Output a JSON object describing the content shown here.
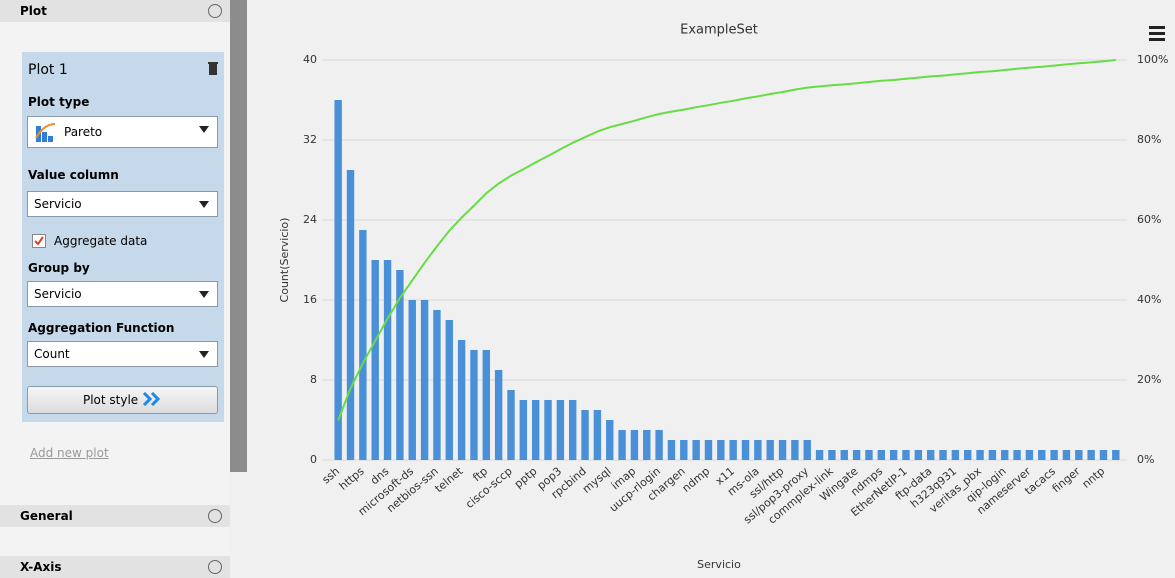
{
  "sidebar": {
    "header": "Plot",
    "plot_name": "Plot 1",
    "plot_type_label": "Plot type",
    "plot_type": "Pareto",
    "value_column_label": "Value column",
    "value_column": "Servicio",
    "aggregate_label": "Aggregate data",
    "aggregate_checked": true,
    "group_by_label": "Group by",
    "group_by": "Servicio",
    "aggregation_label": "Aggregation Function",
    "aggregation": "Count",
    "plot_style": "Plot style",
    "add_plot": "Add new plot",
    "sections": [
      "General",
      "X-Axis"
    ]
  },
  "chart_data": {
    "type": "pareto",
    "title": "ExampleSet",
    "x_label": "Servicio",
    "y_label": "Count(Servicio)",
    "categories": [
      "ssh",
      null,
      "https",
      null,
      "dns",
      null,
      "microsoft-ds",
      null,
      "netbios-ssn",
      null,
      "telnet",
      null,
      "ftp",
      null,
      "cisco-sccp",
      null,
      "pptp",
      null,
      "pop3",
      null,
      "rpcbind",
      null,
      "mysql",
      null,
      "imap",
      null,
      "uucp-rlogin",
      null,
      "chargen",
      null,
      "ndmp",
      null,
      "x11",
      null,
      "ms-ola",
      null,
      "ssl/http",
      null,
      "ssl/pop3-proxy",
      null,
      "commplex-link",
      null,
      "Wingate",
      null,
      "ndmps",
      null,
      "EtherNetIP-1",
      null,
      "ftp-data",
      null,
      "h323q931",
      null,
      "veritas_pbx",
      null,
      "qip-login",
      null,
      "nameserver",
      null,
      "tacacs",
      null,
      "finger",
      null,
      "nntp",
      null
    ],
    "values": [
      36,
      29,
      23,
      20,
      20,
      19,
      16,
      16,
      15,
      14,
      12,
      11,
      11,
      9,
      7,
      6,
      6,
      6,
      6,
      6,
      5,
      5,
      4,
      3,
      3,
      3,
      3,
      2,
      2,
      2,
      2,
      2,
      2,
      2,
      2,
      2,
      2,
      2,
      2,
      1,
      1,
      1,
      1,
      1,
      1,
      1,
      1,
      1,
      1,
      1,
      1,
      1,
      1,
      1,
      1,
      1,
      1,
      1,
      1,
      1,
      1,
      1,
      1,
      1
    ],
    "color": "#4a90d9",
    "cumulative": {
      "axis": "y2",
      "color": "#66dd44",
      "values": [
        9.9,
        17.9,
        24.2,
        29.8,
        35.3,
        40.5,
        44.9,
        49.3,
        53.4,
        57.3,
        60.6,
        63.6,
        66.7,
        69.1,
        71.1,
        72.7,
        74.4,
        76.0,
        77.7,
        79.3,
        80.7,
        82.1,
        83.2,
        84.0,
        84.8,
        85.7,
        86.5,
        87.1,
        87.6,
        88.2,
        88.7,
        89.3,
        89.8,
        90.4,
        90.9,
        91.5,
        92.0,
        92.6,
        93.1,
        93.4,
        93.7,
        93.9,
        94.2,
        94.5,
        94.8,
        95.0,
        95.3,
        95.6,
        95.9,
        96.1,
        96.4,
        96.7,
        97.0,
        97.2,
        97.5,
        97.8,
        98.1,
        98.3,
        98.6,
        98.9,
        99.2,
        99.4,
        99.7,
        100
      ]
    },
    "ylim": [
      0,
      40
    ],
    "yticks": [
      0,
      8,
      16,
      24,
      32,
      40
    ],
    "y2lim": [
      0,
      100
    ],
    "y2ticks": [
      {
        "value": 0,
        "label": "0%"
      },
      {
        "value": 20,
        "label": "20%"
      },
      {
        "value": 40,
        "label": "40%"
      },
      {
        "value": 60,
        "label": "60%"
      },
      {
        "value": 80,
        "label": "80%"
      },
      {
        "value": 100,
        "label": "100%"
      }
    ],
    "grid": true
  }
}
